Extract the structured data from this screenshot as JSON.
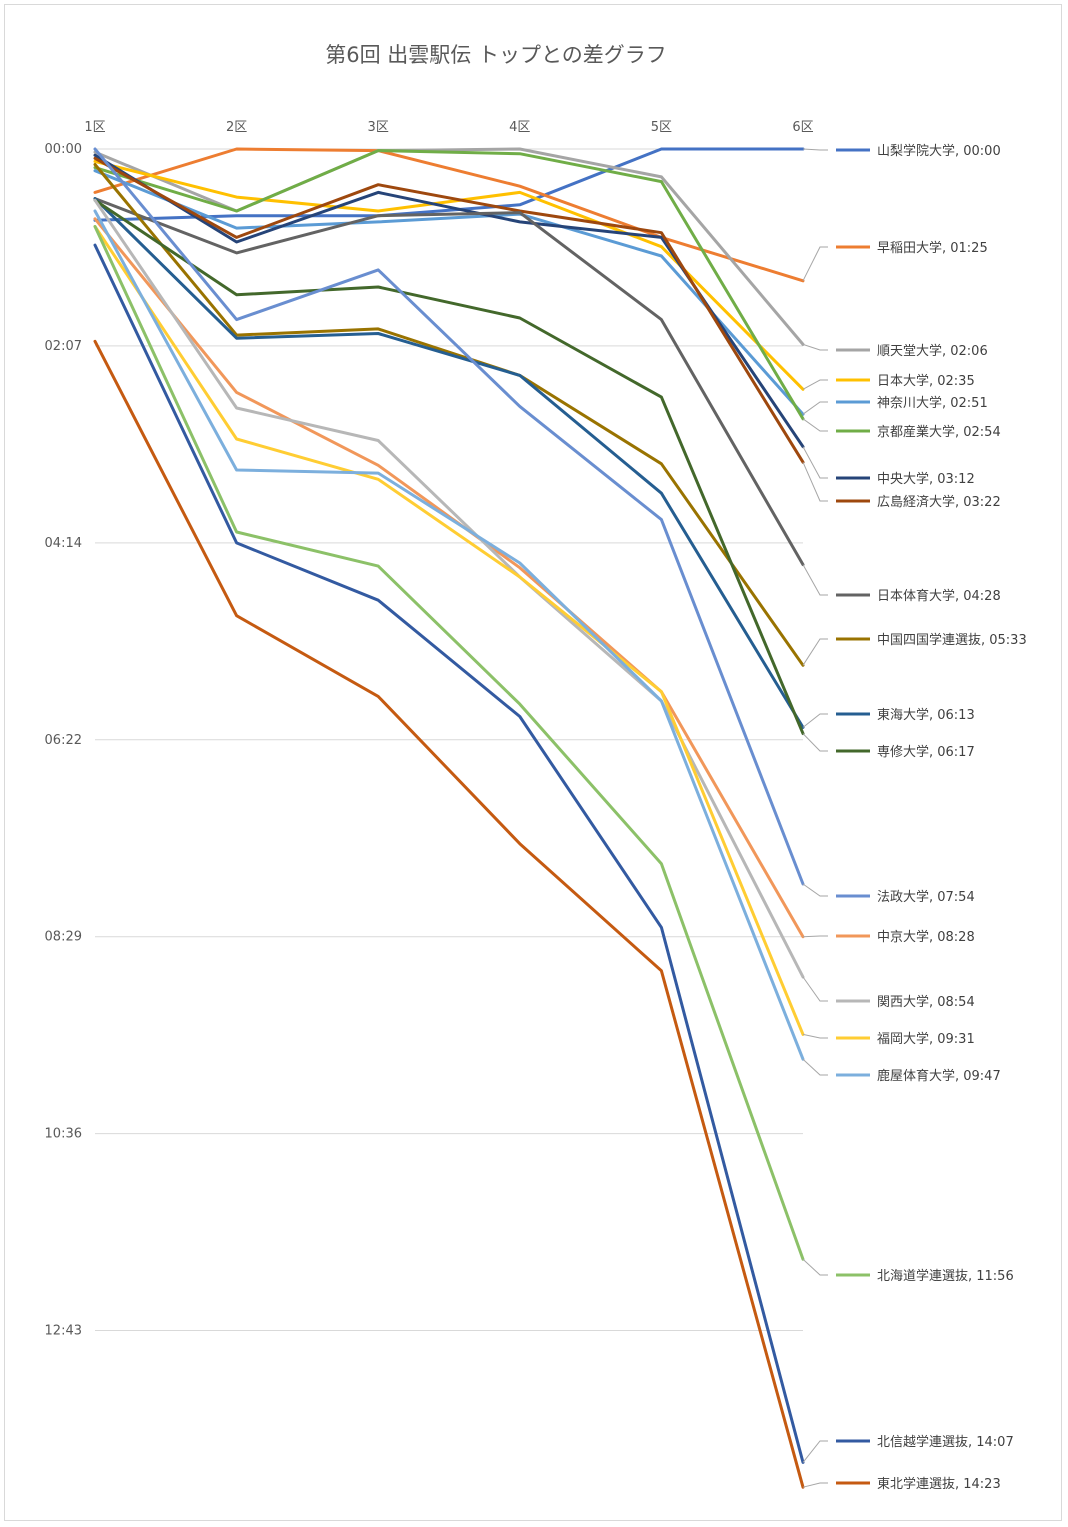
{
  "chart_data": {
    "type": "line",
    "title": "第6回 出雲駅伝 トップとの差グラフ",
    "categories": [
      "1区",
      "2区",
      "3区",
      "4区",
      "5区",
      "6区"
    ],
    "y_ticks": [
      "00:00",
      "02:07",
      "04:14",
      "06:22",
      "08:29",
      "10:36",
      "12:43"
    ],
    "ylim_seconds": [
      0,
      889
    ],
    "y_inverted": true,
    "grid": true,
    "legend": "right, labels at series end",
    "series": [
      {
        "name": "山梨学院大学",
        "label": "山梨学院大学, 00:00",
        "color": "#4472C4",
        "values": [
          46,
          43,
          43,
          36,
          0,
          0
        ]
      },
      {
        "name": "早稲田大学",
        "label": "早稲田大学, 01:25",
        "color": "#ED7D31",
        "values": [
          28,
          0,
          1,
          24,
          57,
          85
        ]
      },
      {
        "name": "順天堂大学",
        "label": "順天堂大学, 02:06",
        "color": "#A5A5A5",
        "values": [
          2,
          40,
          1,
          0,
          18,
          126
        ]
      },
      {
        "name": "日本大学",
        "label": "日本大学, 02:35",
        "color": "#FFC000",
        "values": [
          8,
          31,
          40,
          28,
          63,
          155
        ]
      },
      {
        "name": "神奈川大学",
        "label": "神奈川大学, 02:51",
        "color": "#5B9BD5",
        "values": [
          14,
          51,
          47,
          42,
          69,
          171
        ]
      },
      {
        "name": "京都産業大学",
        "label": "京都産業大学, 02:54",
        "color": "#70AD47",
        "values": [
          12,
          40,
          1,
          3,
          21,
          174
        ]
      },
      {
        "name": "中央大学",
        "label": "中央大学, 03:12",
        "color": "#264478",
        "values": [
          4,
          60,
          28,
          47,
          57,
          192
        ]
      },
      {
        "name": "広島経済大学",
        "label": "広島経済大学, 03:22",
        "color": "#9E480E",
        "values": [
          6,
          57,
          23,
          40,
          54,
          202
        ]
      },
      {
        "name": "日本体育大学",
        "label": "日本体育大学, 04:28",
        "color": "#636363",
        "values": [
          32,
          67,
          43,
          41,
          110,
          268
        ]
      },
      {
        "name": "中国四国学連選抜",
        "label": "中国四国学連選抜, 05:33",
        "color": "#997300",
        "values": [
          10,
          120,
          116,
          146,
          203,
          333
        ]
      },
      {
        "name": "東海大学",
        "label": "東海大学, 06:13",
        "color": "#255E91",
        "values": [
          32,
          122,
          119,
          146,
          222,
          373
        ]
      },
      {
        "name": "専修大学",
        "label": "専修大学, 06:17",
        "color": "#43682B",
        "values": [
          33,
          94,
          89,
          109,
          160,
          377
        ]
      },
      {
        "name": "法政大学",
        "label": "法政大学, 07:54",
        "color": "#698ED0",
        "values": [
          0,
          110,
          78,
          166,
          239,
          474
        ]
      },
      {
        "name": "中京大学",
        "label": "中京大学, 08:28",
        "color": "#F1975A",
        "values": [
          45,
          157,
          204,
          270,
          350,
          508
        ]
      },
      {
        "name": "関西大学",
        "label": "関西大学, 08:54",
        "color": "#B7B7B7",
        "values": [
          33,
          167,
          188,
          276,
          356,
          534
        ]
      },
      {
        "name": "福岡大学",
        "label": "福岡大学, 09:31",
        "color": "#FFCD33",
        "values": [
          50,
          187,
          213,
          276,
          350,
          571
        ]
      },
      {
        "name": "鹿屋体育大学",
        "label": "鹿屋体育大学, 09:47",
        "color": "#7CAFDD",
        "values": [
          40,
          207,
          209,
          267,
          356,
          587
        ]
      },
      {
        "name": "北海道学連選抜",
        "label": "北海道学連選抜, 11:56",
        "color": "#8CC168",
        "values": [
          50,
          247,
          269,
          358,
          461,
          716
        ]
      },
      {
        "name": "北信越学連選抜",
        "label": "北信越学連選抜, 14:07",
        "color": "#335AA1",
        "values": [
          62,
          254,
          291,
          366,
          502,
          847
        ]
      },
      {
        "name": "東北学連選抜",
        "label": "東北学連選抜, 14:23",
        "color": "#C55A11",
        "values": [
          124,
          301,
          353,
          448,
          530,
          863
        ]
      }
    ]
  }
}
